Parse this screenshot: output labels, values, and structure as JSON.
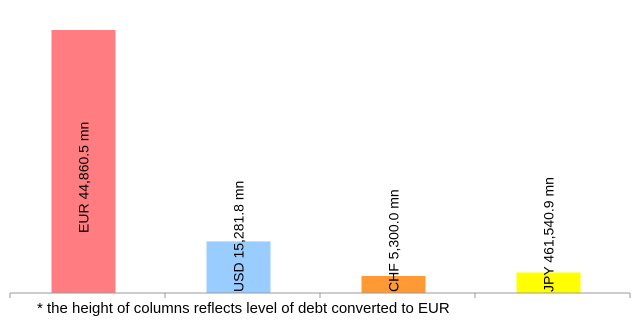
{
  "chart_data": {
    "type": "bar",
    "categories": [
      "EUR",
      "USD",
      "CHF",
      "JPY"
    ],
    "values": [
      44860.5,
      15281.8,
      5300.0,
      461540.9
    ],
    "values_eur_equivalent": [
      44860.5,
      8800,
      2900,
      3500
    ],
    "value_labels": [
      "EUR 44,860.5 mn",
      "USD 15,281.8 mn",
      "CHF 5,300.0 mn",
      "JPY 461,540.9 mn"
    ],
    "colors": [
      "#ff7c80",
      "#99ccff",
      "#ff9933",
      "#ffff00"
    ],
    "unit": "mn",
    "title": "",
    "xlabel": "",
    "ylabel": "",
    "grid": false,
    "legend": "none"
  },
  "footnote": "* the height of columns reflects level of debt converted to EUR"
}
